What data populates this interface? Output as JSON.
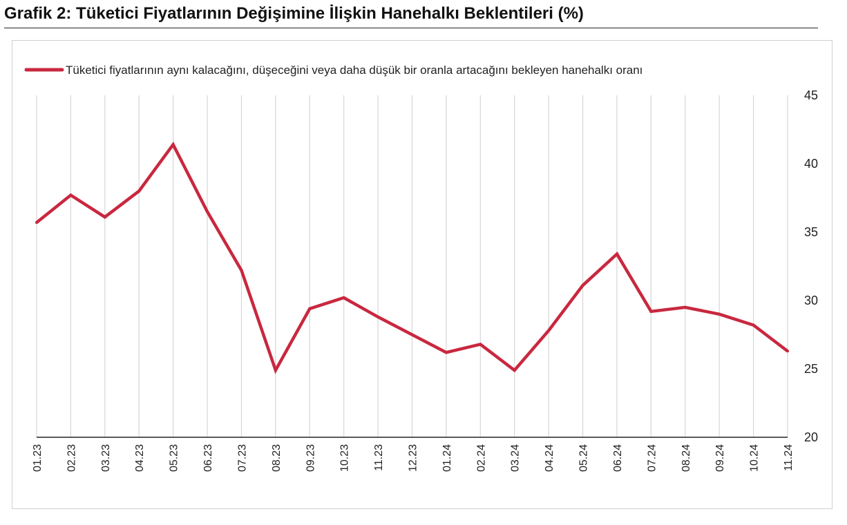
{
  "title": "Grafik 2: Tüketici Fiyatlarının Değişimine İlişkin Hanehalkı Beklentileri (%)",
  "chart_data": {
    "type": "line",
    "categories": [
      "01.23",
      "02.23",
      "03.23",
      "04.23",
      "05.23",
      "06.23",
      "07.23",
      "08.23",
      "09.23",
      "10.23",
      "11.23",
      "12.23",
      "01.24",
      "02.24",
      "03.24",
      "04.24",
      "05.24",
      "06.24",
      "07.24",
      "08.24",
      "09.24",
      "10.24",
      "11.24"
    ],
    "series": [
      {
        "name": "Tüketici fiyatlarının aynı kalacağını, düşeceğini veya daha düşük bir oranla artacağını bekleyen hanehalkı oranı",
        "color": "#c8283f",
        "values": [
          35.7,
          37.7,
          36.1,
          38.0,
          41.4,
          36.5,
          32.2,
          24.9,
          29.4,
          30.2,
          28.8,
          27.5,
          26.2,
          26.8,
          24.9,
          27.8,
          31.1,
          33.4,
          29.2,
          29.5,
          29.0,
          28.2,
          26.3
        ]
      }
    ],
    "y_ticks": [
      20,
      25,
      30,
      35,
      40,
      45
    ],
    "ylim": [
      20,
      45
    ],
    "y_axis_side": "right",
    "grid": "vertical",
    "legend_position": "top-left"
  }
}
